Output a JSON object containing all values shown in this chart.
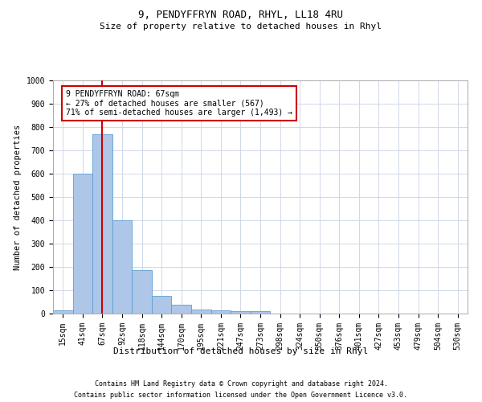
{
  "title": "9, PENDYFFRYN ROAD, RHYL, LL18 4RU",
  "subtitle": "Size of property relative to detached houses in Rhyl",
  "xlabel": "Distribution of detached houses by size in Rhyl",
  "ylabel": "Number of detached properties",
  "bar_labels": [
    "15sqm",
    "41sqm",
    "67sqm",
    "92sqm",
    "118sqm",
    "144sqm",
    "170sqm",
    "195sqm",
    "221sqm",
    "247sqm",
    "273sqm",
    "298sqm",
    "324sqm",
    "350sqm",
    "376sqm",
    "401sqm",
    "427sqm",
    "453sqm",
    "479sqm",
    "504sqm",
    "530sqm"
  ],
  "bar_heights": [
    15,
    600,
    770,
    400,
    185,
    75,
    38,
    18,
    14,
    10,
    12,
    0,
    0,
    0,
    0,
    0,
    0,
    0,
    0,
    0,
    0
  ],
  "bar_color": "#aec6e8",
  "bar_edge_color": "#5a9fd4",
  "property_line_x": 2,
  "annotation_text": "9 PENDYFFRYN ROAD: 67sqm\n← 27% of detached houses are smaller (567)\n71% of semi-detached houses are larger (1,493) →",
  "annotation_box_color": "#ffffff",
  "annotation_box_edge_color": "#cc0000",
  "property_line_color": "#cc0000",
  "ylim": [
    0,
    1000
  ],
  "yticks": [
    0,
    100,
    200,
    300,
    400,
    500,
    600,
    700,
    800,
    900,
    1000
  ],
  "footnote1": "Contains HM Land Registry data © Crown copyright and database right 2024.",
  "footnote2": "Contains public sector information licensed under the Open Government Licence v3.0.",
  "background_color": "#ffffff",
  "grid_color": "#d0d8e8",
  "title_fontsize": 9,
  "subtitle_fontsize": 8,
  "ylabel_fontsize": 7.5,
  "xlabel_fontsize": 8,
  "tick_fontsize": 7,
  "annot_fontsize": 7,
  "footnote_fontsize": 6
}
